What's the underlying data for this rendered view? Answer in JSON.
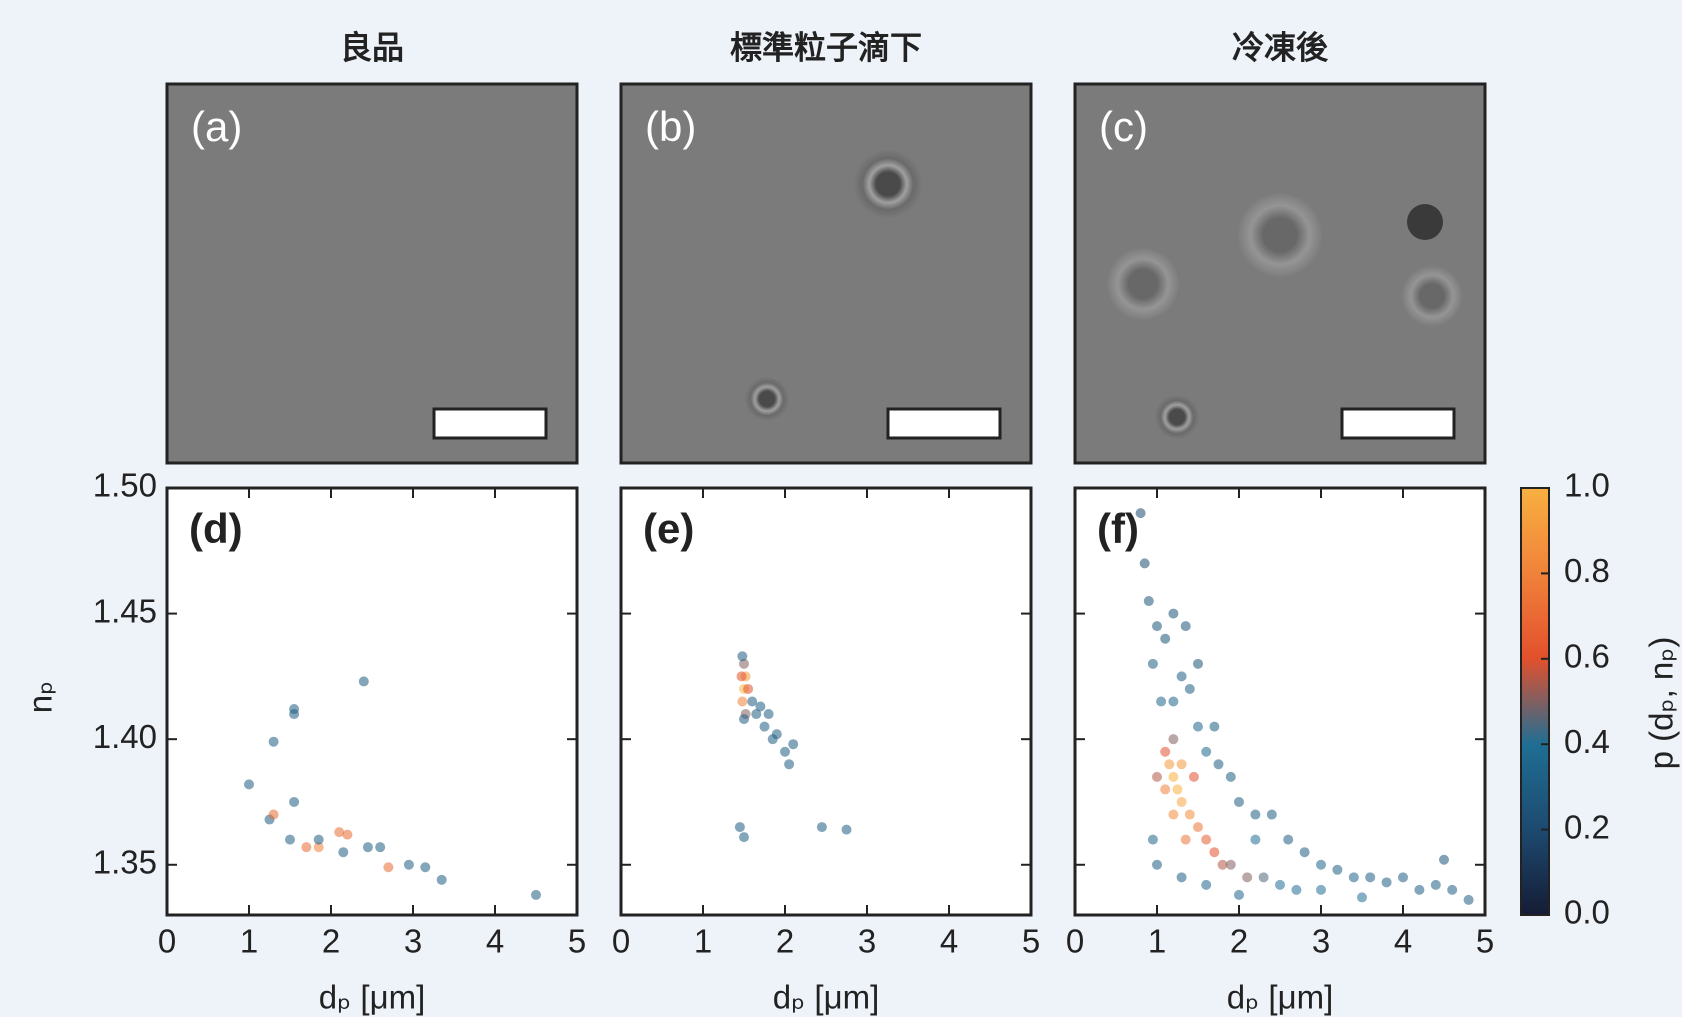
{
  "columns": [
    {
      "title": "良品",
      "image_label": "(a)"
    },
    {
      "title": "標準粒子滴下",
      "image_label": "(b)"
    },
    {
      "title": "冷凍後",
      "image_label": "(c)"
    }
  ],
  "chart_data": [
    {
      "type": "scatter",
      "panel_label": "(d)",
      "x_label": "dₚ [μm]",
      "y_label": "nₚ",
      "xlim": [
        0,
        5
      ],
      "xticks": [
        0,
        1,
        2,
        3,
        4,
        5
      ],
      "ylim": [
        1.33,
        1.5
      ],
      "yticks": [
        {
          "value": 1.5,
          "label": "1.50"
        },
        1.45,
        {
          "value": 1.4,
          "label": "1.40"
        },
        1.35
      ],
      "x": [
        1.0,
        1.25,
        1.3,
        1.3,
        1.5,
        1.55,
        1.55,
        1.55,
        1.7,
        1.85,
        1.85,
        2.1,
        2.15,
        2.2,
        2.4,
        2.45,
        2.6,
        2.7,
        2.95,
        3.15,
        3.35,
        4.5
      ],
      "y": [
        1.382,
        1.368,
        1.37,
        1.399,
        1.36,
        1.375,
        1.41,
        1.412,
        1.357,
        1.357,
        1.36,
        1.363,
        1.355,
        1.362,
        1.423,
        1.357,
        1.357,
        1.349,
        1.35,
        1.349,
        1.344,
        1.338
      ],
      "density": [
        0.3,
        0.3,
        0.7,
        0.3,
        0.3,
        0.3,
        0.3,
        0.3,
        0.7,
        0.8,
        0.3,
        0.7,
        0.3,
        0.7,
        0.3,
        0.3,
        0.3,
        0.7,
        0.3,
        0.3,
        0.3,
        0.3
      ]
    },
    {
      "type": "scatter",
      "panel_label": "(e)",
      "x_label": "dₚ [μm]",
      "xlim": [
        0,
        5
      ],
      "xticks": [
        0,
        1,
        2,
        3,
        4,
        5
      ],
      "ylim": [
        1.33,
        1.5
      ],
      "x": [
        1.5,
        1.52,
        1.48,
        1.5,
        1.52,
        1.55,
        1.47,
        1.5,
        1.48,
        1.6,
        1.65,
        1.7,
        1.75,
        1.8,
        1.85,
        1.9,
        2.0,
        2.05,
        2.1,
        1.45,
        1.5,
        2.45,
        2.75
      ],
      "y": [
        1.42,
        1.425,
        1.415,
        1.43,
        1.41,
        1.42,
        1.425,
        1.408,
        1.433,
        1.415,
        1.41,
        1.413,
        1.405,
        1.41,
        1.4,
        1.402,
        1.395,
        1.39,
        1.398,
        1.365,
        1.361,
        1.365,
        1.364
      ],
      "density": [
        1.0,
        0.9,
        0.8,
        0.5,
        0.5,
        0.6,
        0.6,
        0.3,
        0.3,
        0.3,
        0.3,
        0.3,
        0.3,
        0.3,
        0.3,
        0.3,
        0.3,
        0.3,
        0.3,
        0.3,
        0.3,
        0.3,
        0.3
      ]
    },
    {
      "type": "scatter",
      "panel_label": "(f)",
      "x_label": "dₚ [μm]",
      "xlim": [
        0,
        5
      ],
      "xticks": [
        0,
        1,
        2,
        3,
        4,
        5
      ],
      "ylim": [
        1.33,
        1.5
      ],
      "x": [
        0.95,
        1.0,
        0.9,
        0.85,
        0.8,
        1.1,
        1.2,
        1.35,
        1.3,
        1.4,
        1.05,
        1.2,
        1.5,
        1.6,
        1.75,
        1.9,
        2.0,
        2.2,
        2.4,
        2.6,
        2.8,
        3.0,
        3.2,
        3.4,
        3.6,
        3.8,
        4.0,
        4.2,
        4.4,
        4.6,
        4.8,
        4.5,
        3.5,
        3.0,
        2.7,
        2.2,
        0.95,
        1.0,
        1.3,
        1.6,
        2.0,
        1.5,
        1.7,
        1.2,
        1.25,
        1.3,
        1.15,
        1.3,
        1.4,
        1.2,
        1.1,
        1.5,
        1.35,
        1.6,
        1.7,
        1.8,
        1.9,
        2.1,
        2.3,
        2.5,
        1.1,
        1.0,
        1.2,
        1.45
      ],
      "y": [
        1.43,
        1.445,
        1.455,
        1.47,
        1.49,
        1.44,
        1.45,
        1.445,
        1.425,
        1.42,
        1.415,
        1.415,
        1.405,
        1.395,
        1.39,
        1.385,
        1.375,
        1.37,
        1.37,
        1.36,
        1.355,
        1.35,
        1.348,
        1.345,
        1.345,
        1.343,
        1.345,
        1.34,
        1.342,
        1.34,
        1.336,
        1.352,
        1.337,
        1.34,
        1.34,
        1.36,
        1.36,
        1.35,
        1.345,
        1.342,
        1.338,
        1.43,
        1.405,
        1.385,
        1.38,
        1.375,
        1.39,
        1.39,
        1.37,
        1.37,
        1.38,
        1.365,
        1.36,
        1.36,
        1.355,
        1.35,
        1.35,
        1.345,
        1.345,
        1.342,
        1.395,
        1.385,
        1.4,
        1.385
      ],
      "density": [
        0.3,
        0.25,
        0.25,
        0.2,
        0.2,
        0.25,
        0.25,
        0.25,
        0.3,
        0.3,
        0.35,
        0.35,
        0.35,
        0.35,
        0.3,
        0.3,
        0.3,
        0.3,
        0.3,
        0.3,
        0.3,
        0.35,
        0.3,
        0.35,
        0.3,
        0.3,
        0.3,
        0.3,
        0.3,
        0.3,
        0.3,
        0.25,
        0.4,
        0.4,
        0.4,
        0.4,
        0.35,
        0.3,
        0.3,
        0.35,
        0.35,
        0.25,
        0.3,
        1.0,
        1.0,
        0.95,
        0.9,
        0.9,
        0.85,
        0.85,
        0.8,
        0.75,
        0.75,
        0.65,
        0.6,
        0.55,
        0.5,
        0.5,
        0.45,
        0.4,
        0.6,
        0.55,
        0.5,
        0.6
      ]
    }
  ],
  "colorbar": {
    "label": "p (dₚ, nₚ)",
    "lim": [
      0,
      1
    ],
    "ticks": [
      {
        "value": 0,
        "label": "0.0"
      },
      {
        "value": 0.2,
        "label": "0.2"
      },
      {
        "value": 0.4,
        "label": "0.4"
      },
      {
        "value": 0.6,
        "label": "0.6"
      },
      {
        "value": 0.8,
        "label": "0.8"
      },
      {
        "value": 1,
        "label": "1.0"
      }
    ],
    "colormap": [
      "#151c34",
      "#1d4a70",
      "#1f6e94",
      "#e2502c",
      "#f0823a",
      "#f8b040"
    ]
  }
}
